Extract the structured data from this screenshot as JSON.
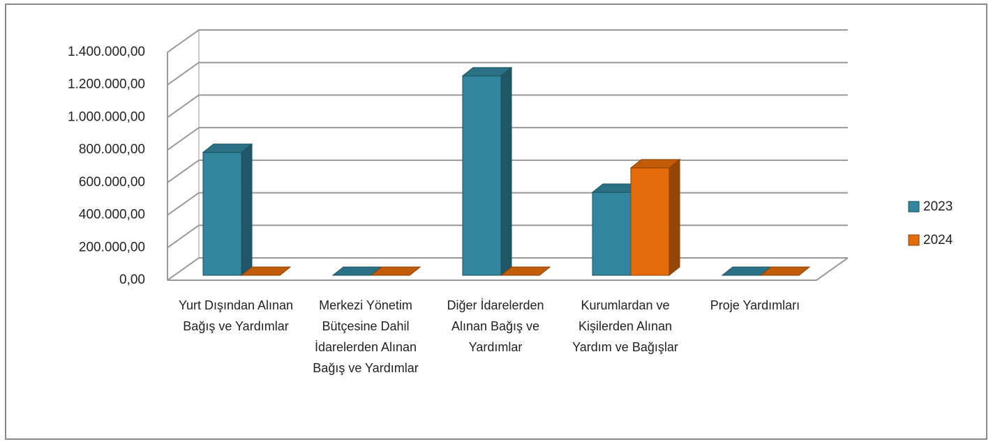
{
  "chart_data": {
    "type": "bar3d",
    "categories": [
      "Yurt Dışından Alınan Bağış ve Yardımlar",
      "Merkezi Yönetim Bütçesine Dahil İdarelerden Alınan Bağış ve Yardımlar",
      "Diğer İdarelerden Alınan Bağış ve Yardımlar",
      "Kurumlardan ve Kişilerden Alınan Yardım ve Bağışlar",
      "Proje Yardımları"
    ],
    "series": [
      {
        "name": "2023",
        "color": "#31859c",
        "values": [
          755000,
          0,
          1225000,
          510000,
          0
        ]
      },
      {
        "name": "2024",
        "color": "#e46c0a",
        "values": [
          0,
          0,
          0,
          660000,
          0
        ]
      }
    ],
    "ylim": [
      0,
      1400000
    ],
    "yticks": [
      {
        "value": 0,
        "label": "0,00"
      },
      {
        "value": 200000,
        "label": "200.000,00"
      },
      {
        "value": 400000,
        "label": "400.000,00"
      },
      {
        "value": 600000,
        "label": "600.000,00"
      },
      {
        "value": 800000,
        "label": "800.000,00"
      },
      {
        "value": 1000000,
        "label": "1.000.000,00"
      },
      {
        "value": 1200000,
        "label": "1.200.000,00"
      },
      {
        "value": 1400000,
        "label": "1.400.000,00"
      }
    ],
    "grid": true,
    "legend": "right"
  }
}
